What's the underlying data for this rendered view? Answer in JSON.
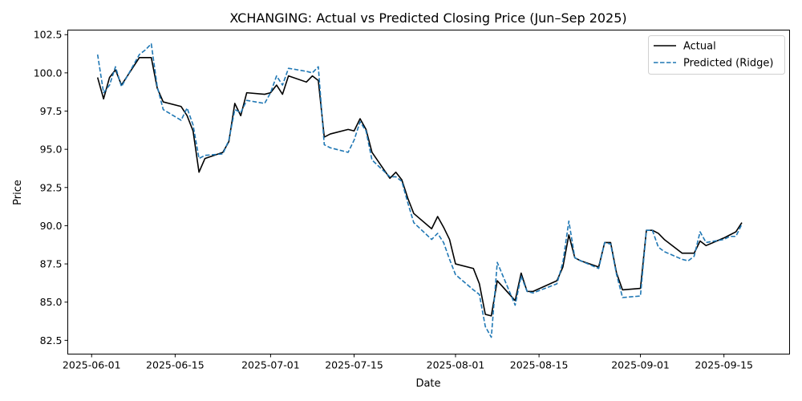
{
  "chart_data": {
    "type": "line",
    "title": "XCHANGING: Actual vs Predicted Closing Price (Jun–Sep 2025)",
    "xlabel": "Date",
    "ylabel": "Price",
    "x_ticks": [
      "2025-06-01",
      "2025-06-15",
      "2025-07-01",
      "2025-07-15",
      "2025-08-01",
      "2025-08-15",
      "2025-09-01",
      "2025-09-15"
    ],
    "y_ticks": [
      "82.5",
      "85.0",
      "87.5",
      "90.0",
      "92.5",
      "95.0",
      "97.5",
      "100.0",
      "102.5"
    ],
    "xlim": [
      "2025-05-28",
      "2025-09-26"
    ],
    "ylim": [
      81.6,
      102.8
    ],
    "grid": false,
    "legend_position": "top-right",
    "x": [
      "2025-06-02",
      "2025-06-03",
      "2025-06-04",
      "2025-06-05",
      "2025-06-06",
      "2025-06-09",
      "2025-06-10",
      "2025-06-11",
      "2025-06-12",
      "2025-06-13",
      "2025-06-16",
      "2025-06-17",
      "2025-06-18",
      "2025-06-19",
      "2025-06-20",
      "2025-06-23",
      "2025-06-24",
      "2025-06-25",
      "2025-06-26",
      "2025-06-27",
      "2025-06-30",
      "2025-07-01",
      "2025-07-02",
      "2025-07-03",
      "2025-07-04",
      "2025-07-07",
      "2025-07-08",
      "2025-07-09",
      "2025-07-10",
      "2025-07-11",
      "2025-07-14",
      "2025-07-15",
      "2025-07-16",
      "2025-07-17",
      "2025-07-18",
      "2025-07-21",
      "2025-07-22",
      "2025-07-23",
      "2025-07-24",
      "2025-07-25",
      "2025-07-28",
      "2025-07-29",
      "2025-07-30",
      "2025-07-31",
      "2025-08-01",
      "2025-08-04",
      "2025-08-05",
      "2025-08-06",
      "2025-08-07",
      "2025-08-08",
      "2025-08-11",
      "2025-08-12",
      "2025-08-13",
      "2025-08-14",
      "2025-08-18",
      "2025-08-19",
      "2025-08-20",
      "2025-08-21",
      "2025-08-22",
      "2025-08-25",
      "2025-08-26",
      "2025-08-27",
      "2025-08-28",
      "2025-08-29",
      "2025-09-01",
      "2025-09-02",
      "2025-09-03",
      "2025-09-04",
      "2025-09-05",
      "2025-09-08",
      "2025-09-09",
      "2025-09-10",
      "2025-09-11",
      "2025-09-12",
      "2025-09-15",
      "2025-09-16",
      "2025-09-17",
      "2025-09-18"
    ],
    "series": [
      {
        "name": "Actual",
        "color": "#000000",
        "style": "solid",
        "values": [
          99.7,
          98.3,
          99.7,
          100.2,
          99.2,
          101.0,
          101.0,
          101.0,
          99.0,
          98.1,
          97.8,
          97.2,
          96.2,
          93.5,
          94.4,
          94.8,
          95.5,
          98.0,
          97.2,
          98.7,
          98.6,
          98.7,
          99.2,
          98.6,
          99.8,
          99.4,
          99.8,
          99.5,
          95.8,
          96.0,
          96.3,
          96.2,
          97.0,
          96.3,
          94.8,
          93.1,
          93.5,
          93.0,
          91.8,
          90.8,
          89.8,
          90.6,
          89.9,
          89.1,
          87.5,
          87.2,
          86.2,
          84.2,
          84.1,
          86.4,
          85.1,
          86.9,
          85.7,
          85.7,
          86.4,
          87.3,
          89.4,
          87.9,
          87.7,
          87.3,
          88.9,
          88.9,
          86.9,
          85.8,
          85.9,
          89.7,
          89.7,
          89.5,
          89.1,
          88.2,
          88.2,
          88.2,
          89.0,
          88.7,
          89.2,
          89.4,
          89.6,
          90.2
        ]
      },
      {
        "name": "Predicted (Ridge)",
        "color": "#1f77b4",
        "style": "dashed",
        "values": [
          101.2,
          98.7,
          99.2,
          100.4,
          99.1,
          101.2,
          101.5,
          101.9,
          99.1,
          97.6,
          96.9,
          97.7,
          96.6,
          94.4,
          94.6,
          94.7,
          95.6,
          97.6,
          97.4,
          98.2,
          98.0,
          98.7,
          99.8,
          99.2,
          100.3,
          100.1,
          100.0,
          100.4,
          95.3,
          95.1,
          94.8,
          95.6,
          96.8,
          96.2,
          94.3,
          93.2,
          93.2,
          92.9,
          91.5,
          90.2,
          89.1,
          89.5,
          88.9,
          87.8,
          86.8,
          85.8,
          85.5,
          83.4,
          82.7,
          87.6,
          84.8,
          86.7,
          85.7,
          85.6,
          86.2,
          87.6,
          90.3,
          87.9,
          87.7,
          87.2,
          88.9,
          88.8,
          86.8,
          85.3,
          85.4,
          89.7,
          89.7,
          88.6,
          88.3,
          87.8,
          87.7,
          88.0,
          89.6,
          88.9,
          89.1,
          89.3,
          89.3,
          90.1
        ]
      }
    ]
  }
}
